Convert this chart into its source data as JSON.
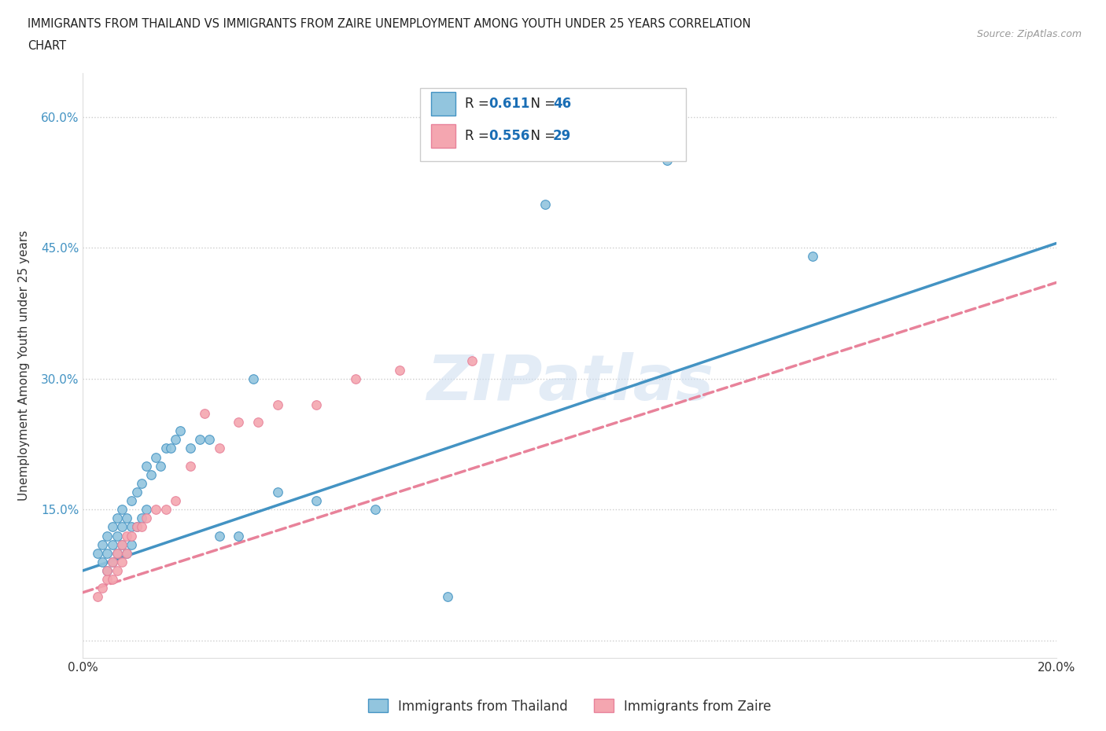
{
  "title_line1": "IMMIGRANTS FROM THAILAND VS IMMIGRANTS FROM ZAIRE UNEMPLOYMENT AMONG YOUTH UNDER 25 YEARS CORRELATION",
  "title_line2": "CHART",
  "source": "Source: ZipAtlas.com",
  "ylabel": "Unemployment Among Youth under 25 years",
  "xlim": [
    0.0,
    0.2
  ],
  "ylim": [
    -0.02,
    0.65
  ],
  "x_ticks": [
    0.0,
    0.05,
    0.1,
    0.15,
    0.2
  ],
  "x_tick_labels": [
    "0.0%",
    "",
    "",
    "",
    "20.0%"
  ],
  "y_ticks": [
    0.0,
    0.15,
    0.3,
    0.45,
    0.6
  ],
  "y_tick_labels": [
    "",
    "15.0%",
    "30.0%",
    "45.0%",
    "60.0%"
  ],
  "R_thailand": 0.611,
  "N_thailand": 46,
  "R_zaire": 0.556,
  "N_zaire": 29,
  "color_thailand": "#92C5DE",
  "color_zaire": "#F4A6B0",
  "line_color_thailand": "#4393C3",
  "line_color_zaire": "#E8829A",
  "watermark": "ZIPatlas",
  "legend_label_thailand": "Immigrants from Thailand",
  "legend_label_zaire": "Immigrants from Zaire",
  "thailand_x": [
    0.003,
    0.004,
    0.004,
    0.005,
    0.005,
    0.005,
    0.006,
    0.006,
    0.006,
    0.007,
    0.007,
    0.007,
    0.008,
    0.008,
    0.008,
    0.009,
    0.009,
    0.01,
    0.01,
    0.01,
    0.011,
    0.011,
    0.012,
    0.012,
    0.013,
    0.013,
    0.014,
    0.015,
    0.016,
    0.017,
    0.018,
    0.019,
    0.02,
    0.022,
    0.024,
    0.026,
    0.028,
    0.032,
    0.035,
    0.04,
    0.048,
    0.06,
    0.075,
    0.095,
    0.12,
    0.15
  ],
  "thailand_y": [
    0.1,
    0.09,
    0.11,
    0.08,
    0.1,
    0.12,
    0.09,
    0.11,
    0.13,
    0.1,
    0.12,
    0.14,
    0.11,
    0.13,
    0.15,
    0.1,
    0.14,
    0.11,
    0.13,
    0.16,
    0.13,
    0.17,
    0.14,
    0.18,
    0.15,
    0.2,
    0.19,
    0.21,
    0.2,
    0.22,
    0.22,
    0.23,
    0.24,
    0.22,
    0.23,
    0.23,
    0.12,
    0.12,
    0.3,
    0.17,
    0.16,
    0.15,
    0.05,
    0.5,
    0.55,
    0.44
  ],
  "zaire_x": [
    0.003,
    0.004,
    0.005,
    0.005,
    0.006,
    0.006,
    0.007,
    0.007,
    0.008,
    0.008,
    0.009,
    0.009,
    0.01,
    0.011,
    0.012,
    0.013,
    0.015,
    0.017,
    0.019,
    0.022,
    0.025,
    0.028,
    0.032,
    0.036,
    0.04,
    0.048,
    0.056,
    0.065,
    0.08
  ],
  "zaire_y": [
    0.05,
    0.06,
    0.07,
    0.08,
    0.07,
    0.09,
    0.08,
    0.1,
    0.09,
    0.11,
    0.1,
    0.12,
    0.12,
    0.13,
    0.13,
    0.14,
    0.15,
    0.15,
    0.16,
    0.2,
    0.26,
    0.22,
    0.25,
    0.25,
    0.27,
    0.27,
    0.3,
    0.31,
    0.32
  ],
  "line_th_x0": 0.0,
  "line_th_y0": 0.08,
  "line_th_x1": 0.2,
  "line_th_y1": 0.455,
  "line_za_x0": 0.0,
  "line_za_y0": 0.055,
  "line_za_x1": 0.2,
  "line_za_y1": 0.41
}
